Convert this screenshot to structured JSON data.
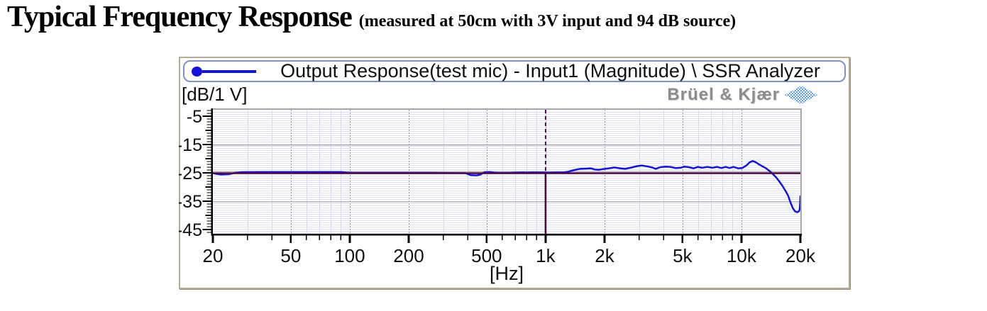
{
  "page": {
    "title": "Typical Frequency Response",
    "subtitle": "(measured at 50cm with 3V input and 94 dB source)"
  },
  "chart": {
    "legend_label": "Output Response(test mic) - Input1 (Magnitude) \\ SSR Analyzer",
    "y_unit_label": "[dB/1 V]",
    "brand": "Brüel & Kjær"
  },
  "colors": {
    "curve_blue": "#1414d8",
    "cursor_maroon": "#4b0a45",
    "grid_gray": "#b4b4b4",
    "grid_dotted": "#9a9a9a",
    "stripe_lavender": "#dfdff4",
    "minor_vertical": "#d8d8ee",
    "plot_border_gray": "#a8a8a8",
    "legend_border": "#8090c8",
    "widget_border": "#b3ac97",
    "brand_gray": "#8d8d8d",
    "brand_blue": "#5c9ce6"
  },
  "chart_data": {
    "type": "line",
    "title": "Output Response(test mic) - Input1 (Magnitude) \\ SSR Analyzer",
    "x_axis": {
      "scale": "log",
      "min": 20,
      "max": 20000,
      "label": "[Hz]",
      "major_ticks": [
        {
          "value": 20,
          "label": "20"
        },
        {
          "value": 50,
          "label": "50"
        },
        {
          "value": 100,
          "label": "100"
        },
        {
          "value": 200,
          "label": "200"
        },
        {
          "value": 500,
          "label": "500"
        },
        {
          "value": 1000,
          "label": "1k"
        },
        {
          "value": 2000,
          "label": "2k"
        },
        {
          "value": 5000,
          "label": "5k"
        },
        {
          "value": 10000,
          "label": "10k"
        },
        {
          "value": 20000,
          "label": "20k"
        }
      ],
      "minor_ticks": [
        30,
        40,
        60,
        70,
        80,
        90,
        300,
        400,
        600,
        700,
        800,
        900,
        3000,
        4000,
        6000,
        7000,
        8000,
        9000
      ]
    },
    "y_axis": {
      "label": "[dB/1 V]",
      "top_value": -2.75,
      "bottom_value": -46.5,
      "major_ticks": [
        -5,
        -15,
        -25,
        -35,
        -45
      ],
      "minor_step": 1
    },
    "gridlines_horizontal": [
      -15,
      -25,
      -35
    ],
    "reference_line": {
      "value": -25,
      "color": "#4b0a45"
    },
    "cursor": {
      "value": 1000,
      "color": "#4b0a45"
    },
    "series": [
      {
        "name": "Output Response(test mic) - Input1 (Magnitude) \\ SSR Analyzer",
        "color": "#1414d8",
        "points": [
          [
            20,
            -25.1
          ],
          [
            21,
            -25.4
          ],
          [
            22,
            -25.6
          ],
          [
            24,
            -25.5
          ],
          [
            26,
            -25.0
          ],
          [
            28,
            -24.75
          ],
          [
            35,
            -24.7
          ],
          [
            50,
            -24.7
          ],
          [
            70,
            -24.7
          ],
          [
            90,
            -24.7
          ],
          [
            97,
            -24.9
          ],
          [
            105,
            -25.0
          ],
          [
            150,
            -25.0
          ],
          [
            250,
            -25.0
          ],
          [
            390,
            -25.1
          ],
          [
            415,
            -25.8
          ],
          [
            445,
            -25.9
          ],
          [
            465,
            -25.6
          ],
          [
            480,
            -25.0
          ],
          [
            490,
            -24.75
          ],
          [
            520,
            -24.7
          ],
          [
            545,
            -24.9
          ],
          [
            570,
            -25.0
          ],
          [
            650,
            -25.0
          ],
          [
            700,
            -24.9
          ],
          [
            760,
            -24.85
          ],
          [
            800,
            -24.9
          ],
          [
            850,
            -24.85
          ],
          [
            950,
            -24.85
          ],
          [
            1050,
            -24.9
          ],
          [
            1150,
            -24.85
          ],
          [
            1250,
            -24.8
          ],
          [
            1320,
            -24.5
          ],
          [
            1400,
            -24.0
          ],
          [
            1500,
            -23.6
          ],
          [
            1620,
            -23.5
          ],
          [
            1700,
            -23.4
          ],
          [
            1780,
            -23.8
          ],
          [
            1870,
            -23.9
          ],
          [
            1960,
            -23.7
          ],
          [
            2100,
            -23.4
          ],
          [
            2250,
            -23.1
          ],
          [
            2400,
            -23.4
          ],
          [
            2550,
            -23.6
          ],
          [
            2750,
            -23.1
          ],
          [
            2950,
            -22.6
          ],
          [
            3100,
            -22.4
          ],
          [
            3300,
            -22.7
          ],
          [
            3500,
            -23.1
          ],
          [
            3650,
            -23.6
          ],
          [
            3850,
            -23.0
          ],
          [
            4100,
            -22.8
          ],
          [
            4350,
            -22.9
          ],
          [
            4600,
            -23.3
          ],
          [
            4900,
            -23.2
          ],
          [
            5100,
            -22.8
          ],
          [
            5400,
            -23.0
          ],
          [
            5700,
            -23.4
          ],
          [
            6000,
            -22.9
          ],
          [
            6300,
            -23.2
          ],
          [
            6700,
            -22.9
          ],
          [
            7100,
            -23.2
          ],
          [
            7500,
            -22.9
          ],
          [
            7900,
            -23.3
          ],
          [
            8300,
            -22.9
          ],
          [
            8700,
            -23.3
          ],
          [
            9100,
            -22.9
          ],
          [
            9600,
            -23.4
          ],
          [
            10100,
            -23.3
          ],
          [
            10600,
            -22.4
          ],
          [
            11000,
            -21.3
          ],
          [
            11400,
            -20.8
          ],
          [
            11800,
            -21.2
          ],
          [
            12300,
            -22.0
          ],
          [
            12800,
            -22.7
          ],
          [
            13300,
            -23.3
          ],
          [
            13900,
            -24.3
          ],
          [
            14400,
            -25.3
          ],
          [
            15000,
            -26.5
          ],
          [
            15600,
            -28.0
          ],
          [
            16200,
            -29.6
          ],
          [
            16800,
            -31.4
          ],
          [
            17300,
            -33.0
          ],
          [
            17800,
            -35.4
          ],
          [
            18300,
            -37.5
          ],
          [
            18800,
            -38.6
          ],
          [
            19300,
            -38.9
          ],
          [
            19700,
            -38.5
          ],
          [
            19850,
            -37.7
          ],
          [
            19950,
            -35.5
          ],
          [
            20000,
            -33.3
          ]
        ]
      }
    ],
    "style": {
      "stripe_color": "#dfdff4",
      "stripe_spacing_px": 3
    }
  }
}
